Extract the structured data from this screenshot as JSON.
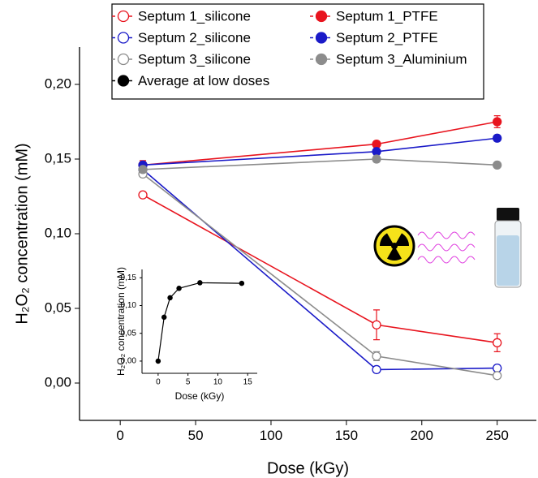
{
  "chart_data": [
    {
      "type": "line",
      "xlabel": "Dose (kGy)",
      "ylabel": "H₂O₂ concentration (mM)",
      "x": [
        15,
        170,
        250
      ],
      "xlim": [
        -27,
        276
      ],
      "xticks": [
        0,
        50,
        100,
        150,
        200,
        250
      ],
      "ylim": [
        -0.025,
        0.225
      ],
      "yticks": [
        {
          "value": 0,
          "label": "0,00"
        },
        {
          "value": 0.05,
          "label": "0,05"
        },
        {
          "value": 0.1,
          "label": "0,10"
        },
        {
          "value": 0.15,
          "label": "0,15"
        },
        {
          "value": 0.2,
          "label": "0,20"
        }
      ],
      "series": [
        {
          "name": "Septum 1_silicone",
          "color": "#e8141e",
          "marker": "open",
          "values": [
            0.126,
            0.039,
            0.027
          ],
          "errors": [
            0.001,
            0.01,
            0.006
          ]
        },
        {
          "name": "Septum 1_PTFE",
          "color": "#e8141e",
          "marker": "filled",
          "values": [
            0.146,
            0.16,
            0.175
          ],
          "errors": [
            0.003,
            0.002,
            0.004
          ]
        },
        {
          "name": "Septum 2_silicone",
          "color": "#1a1ac8",
          "marker": "open",
          "values": [
            0.143,
            0.009,
            0.01
          ],
          "errors": [
            0.002,
            0.002,
            0.002
          ]
        },
        {
          "name": "Septum 2_PTFE",
          "color": "#1a1ac8",
          "marker": "filled",
          "values": [
            0.146,
            0.155,
            0.164
          ],
          "errors": [
            0.002,
            0.002,
            0.002
          ]
        },
        {
          "name": "Septum 3_silicone",
          "color": "#8c8c8c",
          "marker": "open",
          "values": [
            0.14,
            0.018,
            0.005
          ],
          "errors": [
            0.002,
            0.003,
            0.002
          ]
        },
        {
          "name": "Septum 3_Aluminium",
          "color": "#8c8c8c",
          "marker": "filled",
          "values": [
            0.143,
            0.15,
            0.146
          ],
          "errors": [
            0.002,
            0.002,
            0.001
          ]
        }
      ]
    },
    {
      "type": "line",
      "xlabel": "Dose (kGy)",
      "ylabel": "H₂O₂ concentration (mM)",
      "x": [
        0,
        1,
        2,
        3.5,
        7,
        14
      ],
      "xlim": [
        -2.7,
        16.6
      ],
      "xticks": [
        0,
        5,
        10,
        15
      ],
      "ylim": [
        -0.022,
        0.165
      ],
      "yticks": [
        {
          "value": 0,
          "label": "0,00"
        },
        {
          "value": 0.05,
          "label": "0,05"
        },
        {
          "value": 0.1,
          "label": "0,10"
        },
        {
          "value": 0.15,
          "label": "0,15"
        }
      ],
      "series": [
        {
          "name": "Average at low doses",
          "color": "#000000",
          "marker": "filled",
          "values": [
            0.0,
            0.079,
            0.114,
            0.131,
            0.141,
            0.14
          ]
        }
      ]
    }
  ]
}
